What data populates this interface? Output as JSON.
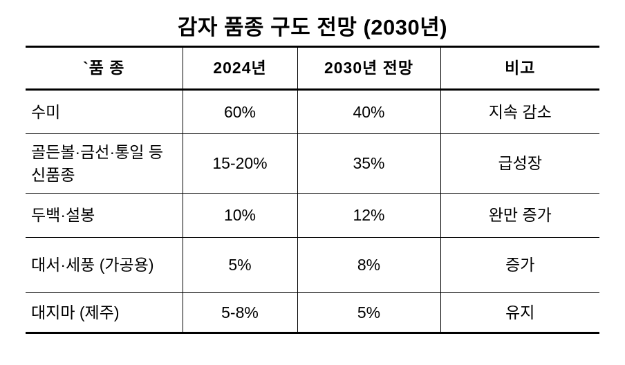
{
  "title": "감자 품종 구도 전망 (2030년)",
  "table": {
    "headers": [
      "`품 종",
      "2024년",
      "2030년 전망",
      "비고"
    ],
    "rows": [
      {
        "variety": "수미",
        "y2024": "60%",
        "y2030": "40%",
        "note": "지속 감소"
      },
      {
        "variety": "골든볼·금선·통일 등 신품종",
        "y2024": "15-20%",
        "y2030": "35%",
        "note": "급성장"
      },
      {
        "variety": "두백·설봉",
        "y2024": "10%",
        "y2030": "12%",
        "note": "완만 증가"
      },
      {
        "variety": "대서·세풍 (가공용)",
        "y2024": "5%",
        "y2030": "8%",
        "note": "증가"
      },
      {
        "variety": "대지마 (제주)",
        "y2024": "5-8%",
        "y2030": "5%",
        "note": "유지"
      }
    ]
  }
}
